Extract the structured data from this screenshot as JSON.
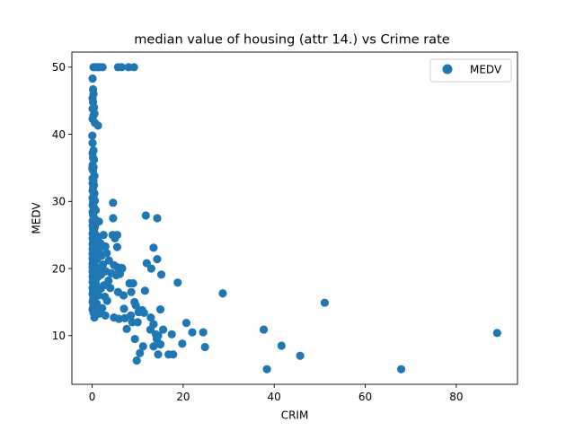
{
  "chart_data": {
    "type": "scatter",
    "title": "median value of housing (attr 14.) vs Crime rate",
    "xlabel": "CRIM",
    "ylabel": "MEDV",
    "xlim": [
      -4.45,
      93.45
    ],
    "ylim": [
      2.75,
      52.25
    ],
    "xticks": [
      0,
      20,
      40,
      60,
      80
    ],
    "yticks": [
      10,
      20,
      30,
      40,
      50
    ],
    "grid": false,
    "legend": {
      "position": "top-right",
      "entries": [
        "MEDV"
      ]
    },
    "series": [
      {
        "name": "MEDV",
        "color": "#1f77b4",
        "points": [
          [
            0.3,
            50
          ],
          [
            0.6,
            50
          ],
          [
            1.2,
            50
          ],
          [
            1.6,
            50
          ],
          [
            2.3,
            50
          ],
          [
            5.7,
            50
          ],
          [
            6.5,
            50
          ],
          [
            8.0,
            50
          ],
          [
            9.2,
            50
          ],
          [
            0.1,
            48.3
          ],
          [
            0.2,
            46.7
          ],
          [
            0.3,
            46
          ],
          [
            0.1,
            45.4
          ],
          [
            0.2,
            44.8
          ],
          [
            0.4,
            44.0
          ],
          [
            0.1,
            43.8
          ],
          [
            0.5,
            43.1
          ],
          [
            0.3,
            42.8
          ],
          [
            0.1,
            42.3
          ],
          [
            0.6,
            41.7
          ],
          [
            1.3,
            41.3
          ],
          [
            0.05,
            39.8
          ],
          [
            0.1,
            38.7
          ],
          [
            0.3,
            37.6
          ],
          [
            0.1,
            37.2
          ],
          [
            0.2,
            36.5
          ],
          [
            0.4,
            36.2
          ],
          [
            0.1,
            35.4
          ],
          [
            0.3,
            35.1
          ],
          [
            0.05,
            34.9
          ],
          [
            0.2,
            34.6
          ],
          [
            0.5,
            33.8
          ],
          [
            0.1,
            33.4
          ],
          [
            0.3,
            33.1
          ],
          [
            0.1,
            32.7
          ],
          [
            0.4,
            32.4
          ],
          [
            0.2,
            32.0
          ],
          [
            0.1,
            31.6
          ],
          [
            0.5,
            31.2
          ],
          [
            0.3,
            30.8
          ],
          [
            0.1,
            30.5
          ],
          [
            0.6,
            30.1
          ],
          [
            0.2,
            29.8
          ],
          [
            0.1,
            29.4
          ],
          [
            0.4,
            29.1
          ],
          [
            0.3,
            28.7
          ],
          [
            0.1,
            28.4
          ],
          [
            0.8,
            28.7
          ],
          [
            0.2,
            28.0
          ],
          [
            0.5,
            27.5
          ],
          [
            0.1,
            27.1
          ],
          [
            1.0,
            27.1
          ],
          [
            1.5,
            27.0
          ],
          [
            0.3,
            26.6
          ],
          [
            0.1,
            26.4
          ],
          [
            0.6,
            26.2
          ],
          [
            0.2,
            25.9
          ],
          [
            0.4,
            25.6
          ],
          [
            0.1,
            25.2
          ],
          [
            0.8,
            25.0
          ],
          [
            2.5,
            25.0
          ],
          [
            4.5,
            25.0
          ],
          [
            5.5,
            25.0
          ],
          [
            0.3,
            24.8
          ],
          [
            0.1,
            24.5
          ],
          [
            1.2,
            24.4
          ],
          [
            0.5,
            24.2
          ],
          [
            0.2,
            23.9
          ],
          [
            1.8,
            23.8
          ],
          [
            0.1,
            23.6
          ],
          [
            0.7,
            23.4
          ],
          [
            2.9,
            23.3
          ],
          [
            0.3,
            23.1
          ],
          [
            0.1,
            22.9
          ],
          [
            1.5,
            22.8
          ],
          [
            0.4,
            22.6
          ],
          [
            0.2,
            22.4
          ],
          [
            3.2,
            22.3
          ],
          [
            0.1,
            22.2
          ],
          [
            0.6,
            22.0
          ],
          [
            2.1,
            21.9
          ],
          [
            0.3,
            21.7
          ],
          [
            0.1,
            21.5
          ],
          [
            1.1,
            21.4
          ],
          [
            3.7,
            21.2
          ],
          [
            0.2,
            21.1
          ],
          [
            0.5,
            20.9
          ],
          [
            0.1,
            20.7
          ],
          [
            2.4,
            20.6
          ],
          [
            4.8,
            20.5
          ],
          [
            0.3,
            20.4
          ],
          [
            0.1,
            20.2
          ],
          [
            1.6,
            20.1
          ],
          [
            5.5,
            20.2
          ],
          [
            6.5,
            20.1
          ],
          [
            0.4,
            19.9
          ],
          [
            0.2,
            19.7
          ],
          [
            3.0,
            19.6
          ],
          [
            0.1,
            19.5
          ],
          [
            0.7,
            19.4
          ],
          [
            4.2,
            19.3
          ],
          [
            2.0,
            19.1
          ],
          [
            0.3,
            19.0
          ],
          [
            5.3,
            19.0
          ],
          [
            0.1,
            18.8
          ],
          [
            1.2,
            18.7
          ],
          [
            0.5,
            18.5
          ],
          [
            0.2,
            18.3
          ],
          [
            3.6,
            18.2
          ],
          [
            0.1,
            18.0
          ],
          [
            0.8,
            17.8
          ],
          [
            2.6,
            17.5
          ],
          [
            0.3,
            17.3
          ],
          [
            0.1,
            17.1
          ],
          [
            1.9,
            17.0
          ],
          [
            4.0,
            17.1
          ],
          [
            0.6,
            16.8
          ],
          [
            0.2,
            16.5
          ],
          [
            5.7,
            16.5
          ],
          [
            0.1,
            16.2
          ],
          [
            1.4,
            16.0
          ],
          [
            2.8,
            15.8
          ],
          [
            0.4,
            15.6
          ],
          [
            0.2,
            15.4
          ],
          [
            3.3,
            15.2
          ],
          [
            0.1,
            15.0
          ],
          [
            1.0,
            14.8
          ],
          [
            0.5,
            14.5
          ],
          [
            0.2,
            14.2
          ],
          [
            2.2,
            14.1
          ],
          [
            0.1,
            13.9
          ],
          [
            0.8,
            13.6
          ],
          [
            0.3,
            13.4
          ],
          [
            1.6,
            13.3
          ],
          [
            0.5,
            12.7
          ],
          [
            2.9,
            13.0
          ],
          [
            4.8,
            12.7
          ],
          [
            5.9,
            12.5
          ],
          [
            4.6,
            29.8
          ],
          [
            4.6,
            27.5
          ],
          [
            5.0,
            24.5
          ],
          [
            5.5,
            23.2
          ],
          [
            6.6,
            20.0
          ],
          [
            6.1,
            19.2
          ],
          [
            6.9,
            16.0
          ],
          [
            7.0,
            14.0
          ],
          [
            7.2,
            12.6
          ],
          [
            7.6,
            11.0
          ],
          [
            8.2,
            17.8
          ],
          [
            8.6,
            16.5
          ],
          [
            9.0,
            17.8
          ],
          [
            9.3,
            15.0
          ],
          [
            9.6,
            14.5
          ],
          [
            8.5,
            13.0
          ],
          [
            8.8,
            12.0
          ],
          [
            10.0,
            12.0
          ],
          [
            10.2,
            13.5
          ],
          [
            9.4,
            9.5
          ],
          [
            9.8,
            6.3
          ],
          [
            10.5,
            7.4
          ],
          [
            11.2,
            8.4
          ],
          [
            11.0,
            13.8
          ],
          [
            11.4,
            13.4
          ],
          [
            11.8,
            27.9
          ],
          [
            12.0,
            20.8
          ],
          [
            13.0,
            20.0
          ],
          [
            13.5,
            23.1
          ],
          [
            14.3,
            21.4
          ],
          [
            14.3,
            27.5
          ],
          [
            15.2,
            19.1
          ],
          [
            11.6,
            16.7
          ],
          [
            12.9,
            12.7
          ],
          [
            13.5,
            11.7
          ],
          [
            12.8,
            10.9
          ],
          [
            14.0,
            10.2
          ],
          [
            14.2,
            9.5
          ],
          [
            14.5,
            10.0
          ],
          [
            15.0,
            8.7
          ],
          [
            13.5,
            8.4
          ],
          [
            14.5,
            7.2
          ],
          [
            15.0,
            13.9
          ],
          [
            15.6,
            10.9
          ],
          [
            16.8,
            7.2
          ],
          [
            17.8,
            7.2
          ],
          [
            17.5,
            10.2
          ],
          [
            18.8,
            17.9
          ],
          [
            19.8,
            8.8
          ],
          [
            20.7,
            11.9
          ],
          [
            22.0,
            10.5
          ],
          [
            24.4,
            10.5
          ],
          [
            24.8,
            8.3
          ],
          [
            28.7,
            16.3
          ],
          [
            37.7,
            10.9
          ],
          [
            38.4,
            5.0
          ],
          [
            41.6,
            8.5
          ],
          [
            45.7,
            7.0
          ],
          [
            51.1,
            14.9
          ],
          [
            67.9,
            5.0
          ],
          [
            88.98,
            10.4
          ]
        ]
      }
    ]
  }
}
